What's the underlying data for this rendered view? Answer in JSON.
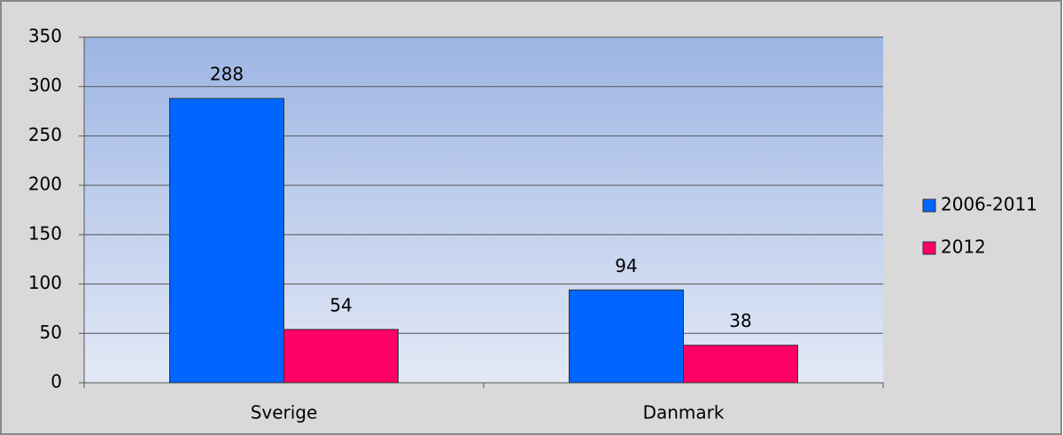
{
  "chart_data": {
    "type": "bar",
    "categories": [
      "Sverige",
      "Danmark"
    ],
    "series": [
      {
        "name": "2006-2011",
        "color": "#0066ff",
        "values": [
          288,
          94
        ]
      },
      {
        "name": "2012",
        "color": "#ff0066",
        "values": [
          54,
          38
        ]
      }
    ],
    "ylim": [
      0,
      350
    ],
    "yticks": [
      0,
      50,
      100,
      150,
      200,
      250,
      300,
      350
    ],
    "grid": true,
    "legend": "right",
    "data_labels": true
  }
}
